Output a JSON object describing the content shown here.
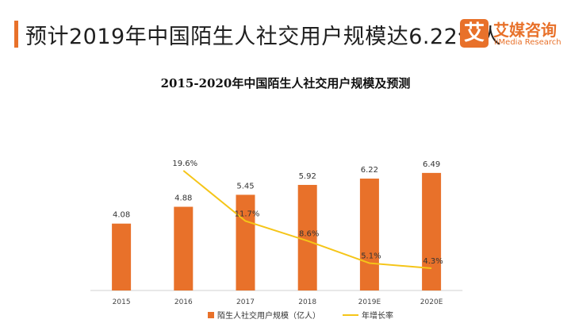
{
  "header": {
    "title": "预计2019年中国陌生人社交用户规模达6.22亿人",
    "logo_mark": "艾",
    "logo_cn": "艾媒咨询",
    "logo_en": "iiMedia Research"
  },
  "chart_data": {
    "type": "bar",
    "title": "2015-2020年中国陌生人社交用户规模及预测",
    "categories": [
      "2015",
      "2016",
      "2017",
      "2018",
      "2019E",
      "2020E"
    ],
    "series": [
      {
        "name": "陌生人社交用户规模（亿人）",
        "type": "bar",
        "values": [
          4.08,
          4.88,
          5.45,
          5.92,
          6.22,
          6.49
        ],
        "labels": [
          "4.08",
          "4.88",
          "5.45",
          "5.92",
          "6.22",
          "6.49"
        ]
      },
      {
        "name": "年增长率",
        "type": "line",
        "values": [
          null,
          19.6,
          11.7,
          8.6,
          5.1,
          4.3
        ],
        "labels": [
          "",
          "19.6%",
          "11.7%",
          "8.6%",
          "5.1%",
          "4.3%"
        ]
      }
    ],
    "colors": {
      "bar": "#e8712a",
      "line": "#f5c518"
    },
    "legend_position": "bottom"
  }
}
